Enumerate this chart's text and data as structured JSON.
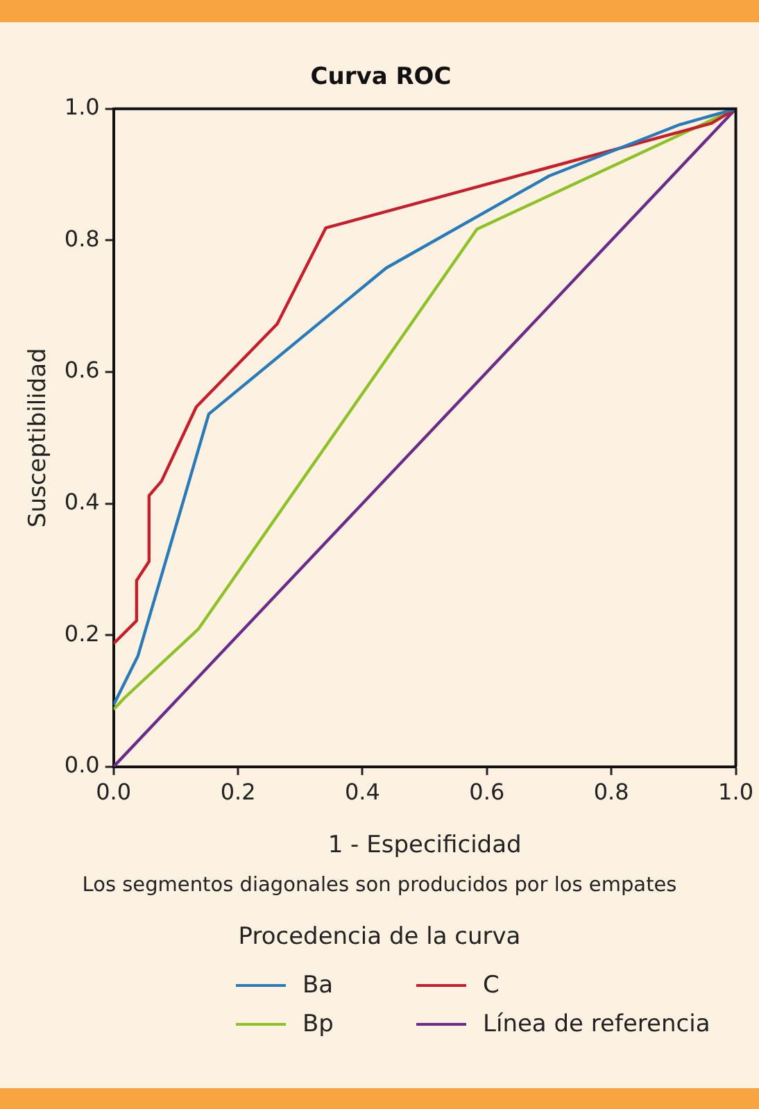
{
  "chart_data": {
    "type": "line",
    "title": "Curva ROC",
    "xlabel": "1 - Especificidad",
    "ylabel": "Susceptibilidad",
    "legend_title": "Procedencia de la curva",
    "legend": "bottom",
    "grid": false,
    "marker": "none",
    "line_style": "solid",
    "annotations": [
      "Los segmentos diagonales son producidos por los empates"
    ],
    "xlim": [
      0,
      1
    ],
    "ylim": [
      0,
      1
    ],
    "xticks": [
      {
        "value": 0,
        "label": "0.0"
      },
      {
        "value": 0.2,
        "label": "0.2"
      },
      {
        "value": 0.4,
        "label": "0.4"
      },
      {
        "value": 0.6,
        "label": "0.6"
      },
      {
        "value": 0.8,
        "label": "0.8"
      },
      {
        "value": 1,
        "label": "1.0"
      }
    ],
    "yticks": [
      {
        "value": 0,
        "label": "0.0"
      },
      {
        "value": 0.2,
        "label": "0.2"
      },
      {
        "value": 0.4,
        "label": "0.4"
      },
      {
        "value": 0.6,
        "label": "0.6"
      },
      {
        "value": 0.8,
        "label": "0.8"
      },
      {
        "value": 1,
        "label": "1.0"
      }
    ],
    "series": [
      {
        "name": "Ba",
        "color": "#2a7ab8",
        "x": [
          0,
          0.039,
          0.153,
          0.438,
          0.7,
          0.91,
          1
        ],
        "values": [
          0.094,
          0.168,
          0.536,
          0.758,
          0.898,
          0.976,
          1
        ]
      },
      {
        "name": "C",
        "color": "#c61f2b",
        "x": [
          0,
          0.037,
          0.037,
          0.057,
          0.057,
          0.077,
          0.133,
          0.263,
          0.341,
          0.961,
          1
        ],
        "values": [
          0.187,
          0.222,
          0.283,
          0.312,
          0.412,
          0.434,
          0.547,
          0.673,
          0.819,
          0.978,
          1
        ]
      },
      {
        "name": "Bp",
        "color": "#8dc127",
        "x": [
          0,
          0.018,
          0.136,
          0.584,
          1
        ],
        "values": [
          0.087,
          0.105,
          0.209,
          0.817,
          1
        ]
      },
      {
        "name": "Línea de referencia",
        "color": "#6b2b88",
        "x": [
          0,
          1
        ],
        "values": [
          0,
          1
        ]
      }
    ]
  }
}
